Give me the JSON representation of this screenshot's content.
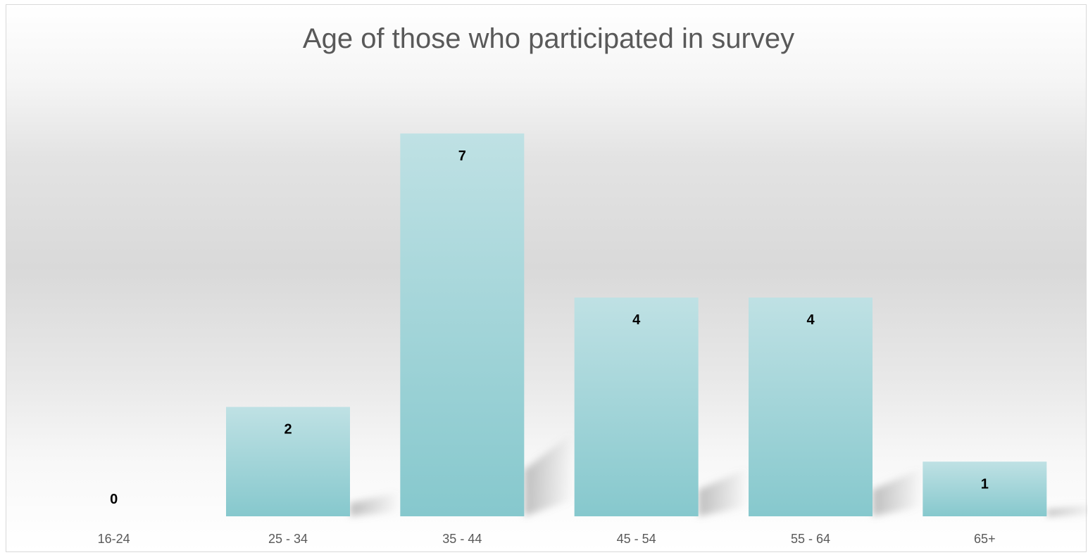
{
  "chart_data": {
    "type": "bar",
    "title": "Age of those who participated in survey",
    "xlabel": "",
    "ylabel": "",
    "categories": [
      "16-24",
      "25 - 34",
      "35 - 44",
      "45 - 54",
      "55 - 64",
      "65+"
    ],
    "values": [
      0,
      2,
      7,
      4,
      4,
      1
    ],
    "ylim": [
      0,
      8
    ],
    "grid": false,
    "legend": "none",
    "data_labels": true,
    "colors": {
      "bar_top": "#bfe1e4",
      "bar_bottom": "#86c8cd",
      "shadow": "#a6a6a6",
      "title": "#595959",
      "tick_label": "#595959",
      "data_label": "#000000"
    }
  }
}
